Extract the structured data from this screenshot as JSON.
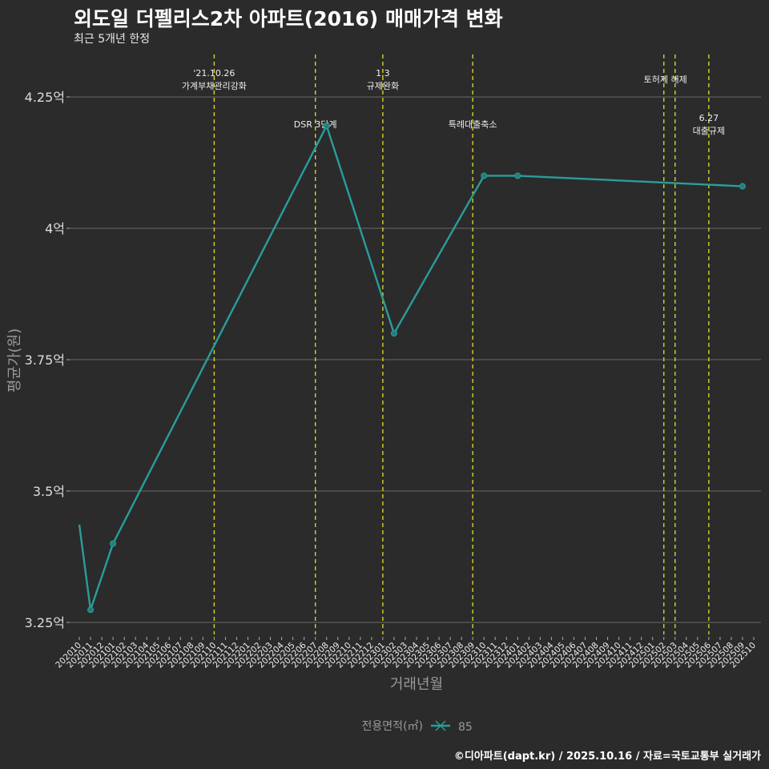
{
  "title": "외도일 더펠리스2차 아파트(2016) 매매가격 변화",
  "subtitle": "최근 5개년 한정",
  "caption": "©디아파트(dapt.kr) / 2025.10.16 / 자료=국토교통부 실거래가",
  "colors": {
    "background": "#2b2b2b",
    "line": "#2a9d9b",
    "event_line": "#d4d42a",
    "grid": "#6a6a6a"
  },
  "chart_data": {
    "type": "line",
    "title": "외도일 더펠리스2차 아파트(2016) 매매가격 변화",
    "xlabel": "거래년월",
    "ylabel": "평균가(원)",
    "ylim": [
      3.22,
      4.3
    ],
    "yticks": [
      3.25,
      3.5,
      3.75,
      4.0,
      4.25
    ],
    "ytick_labels": [
      "3.25억",
      "3.5억",
      "3.75억",
      "4억",
      "4.25억"
    ],
    "x_categories": [
      "202010",
      "202011",
      "202012",
      "202101",
      "202102",
      "202103",
      "202104",
      "202105",
      "202106",
      "202107",
      "202108",
      "202109",
      "202110",
      "202111",
      "202112",
      "202201",
      "202202",
      "202203",
      "202204",
      "202205",
      "202206",
      "202207",
      "202208",
      "202209",
      "202210",
      "202211",
      "202212",
      "202301",
      "202302",
      "202303",
      "202304",
      "202305",
      "202306",
      "202307",
      "202308",
      "202309",
      "202310",
      "202311",
      "202312",
      "202401",
      "202402",
      "202403",
      "202404",
      "202405",
      "202406",
      "202407",
      "202408",
      "202409",
      "202410",
      "202411",
      "202412",
      "202501",
      "202502",
      "202503",
      "202504",
      "202505",
      "202506",
      "202507",
      "202508",
      "202509",
      "202510"
    ],
    "legend": {
      "title": "전용면적(㎡)",
      "position": "bottom"
    },
    "series": [
      {
        "name": "85",
        "points": [
          {
            "x": "202010",
            "y": 3.436,
            "marker": false
          },
          {
            "x": "202011",
            "y": 3.274,
            "marker": true
          },
          {
            "x": "202101",
            "y": 3.4,
            "marker": true
          },
          {
            "x": "202208",
            "y": 4.195,
            "marker": true
          },
          {
            "x": "202302",
            "y": 3.8,
            "marker": true
          },
          {
            "x": "202310",
            "y": 4.1,
            "marker": true
          },
          {
            "x": "202401",
            "y": 4.1,
            "marker": true
          },
          {
            "x": "202509",
            "y": 4.08,
            "marker": true
          }
        ]
      }
    ],
    "events": [
      {
        "x": "202110",
        "lines": [
          "'21.10.26",
          "가계부채관리강화"
        ],
        "level": "top"
      },
      {
        "x": "202207",
        "lines": [
          "DSR 3단계"
        ],
        "level": "mid"
      },
      {
        "x": "202301",
        "lines": [
          "1.3",
          "규제완화"
        ],
        "level": "top"
      },
      {
        "x": "202309",
        "lines": [
          "특례대출축소"
        ],
        "level": "mid"
      },
      {
        "x": "202502",
        "lines": [
          "토허제 해제"
        ],
        "level": "top1"
      },
      {
        "x": "202503",
        "lines": [],
        "level": "none"
      },
      {
        "x": "202506",
        "lines": [
          "6.27",
          "대출규제"
        ],
        "level": "mid2"
      }
    ]
  }
}
